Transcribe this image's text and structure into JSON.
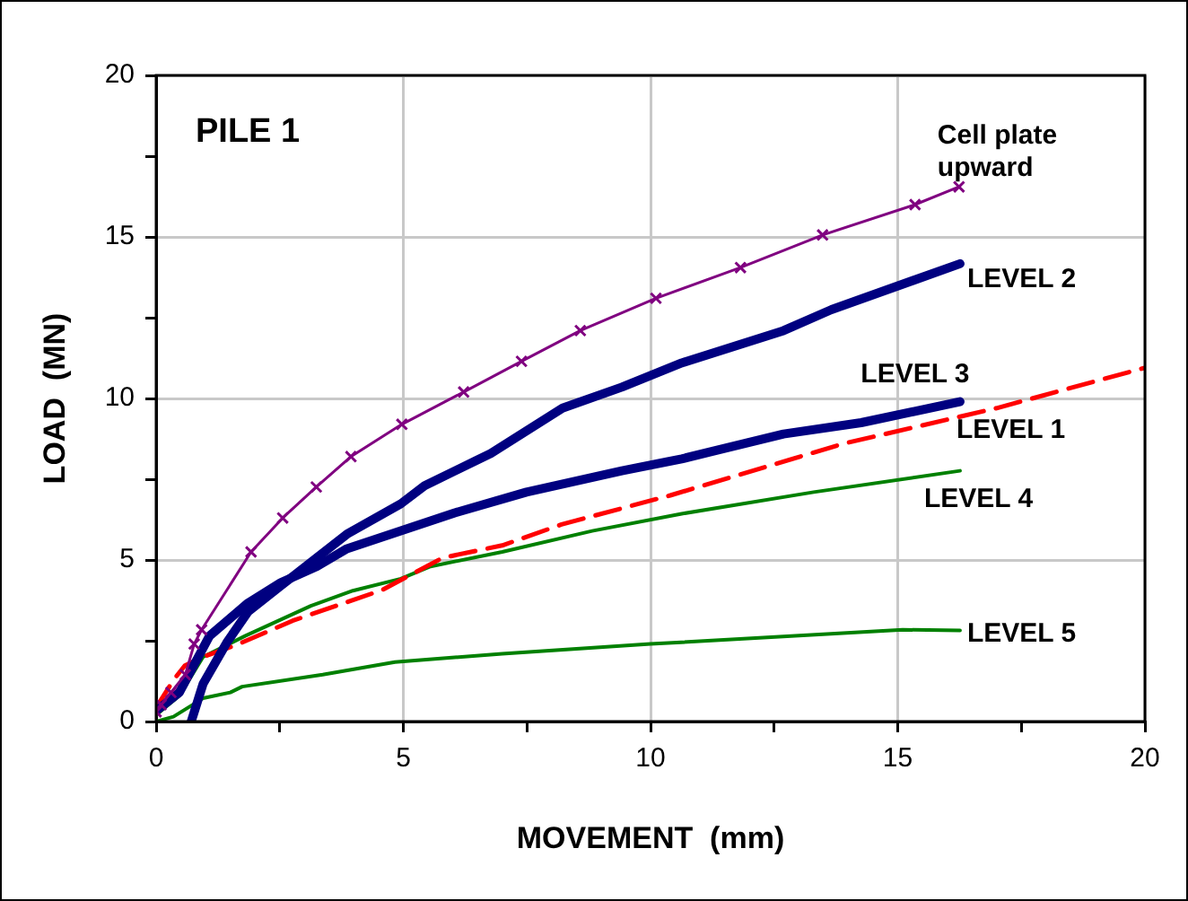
{
  "chart_data": {
    "type": "line",
    "xlabel": "MOVEMENT  (mm)",
    "ylabel": "LOAD  (MN)",
    "annotations": [
      "PILE 1"
    ],
    "xlim": [
      0,
      20
    ],
    "ylim": [
      0,
      20
    ],
    "xticks": [
      0,
      {
        "value": 2.5,
        "label": null
      },
      5,
      {
        "value": 7.5,
        "label": null
      },
      10,
      {
        "value": 12.5,
        "label": null
      },
      15,
      {
        "value": 17.5,
        "label": null
      },
      20
    ],
    "yticks": [
      0,
      {
        "value": 2.5,
        "label": null
      },
      5,
      {
        "value": 7.5,
        "label": null
      },
      10,
      {
        "value": 12.5,
        "label": null
      },
      15,
      {
        "value": 17.5,
        "label": null
      },
      20
    ],
    "grid": true,
    "legend": false,
    "marker": "none",
    "line_style": "solid",
    "series": [
      {
        "name": "Cell plate upward",
        "color": "#800080",
        "marker": "cross",
        "x": [
          0,
          0.1,
          0.3,
          0.59,
          0.77,
          0.92,
          1.92,
          2.56,
          3.24,
          3.94,
          4.97,
          6.22,
          7.39,
          8.58,
          10.11,
          11.82,
          13.48,
          15.35,
          16.24
        ],
        "values": [
          0.3,
          0.52,
          0.9,
          1.45,
          2.4,
          2.84,
          5.25,
          6.3,
          7.26,
          8.2,
          9.2,
          10.2,
          11.15,
          12.1,
          13.1,
          14.05,
          15.06,
          16.0,
          16.55
        ]
      },
      {
        "name": "LEVEL 2",
        "color": "#000080",
        "x": [
          0.71,
          0.95,
          1.44,
          1.86,
          2.52,
          3.25,
          3.86,
          4.95,
          5.43,
          6.77,
          8.22,
          9.42,
          10.63,
          12.69,
          13.66,
          16.26
        ],
        "values": [
          0,
          1.17,
          2.47,
          3.4,
          4.2,
          5.07,
          5.8,
          6.74,
          7.3,
          8.3,
          9.7,
          10.35,
          11.1,
          12.1,
          12.75,
          14.17
        ]
      },
      {
        "name": "LEVEL 3",
        "color": "#000080",
        "x": [
          0,
          0.47,
          1.08,
          1.86,
          2.52,
          3.25,
          3.86,
          4.95,
          6.04,
          7.49,
          9.42,
          10.63,
          12.69,
          14.26,
          16.26
        ],
        "values": [
          0.33,
          0.9,
          2.65,
          3.67,
          4.3,
          4.8,
          5.35,
          5.9,
          6.46,
          7.1,
          7.76,
          8.13,
          8.9,
          9.25,
          9.9
        ]
      },
      {
        "name": "LEVEL 1",
        "color": "#ff0000",
        "line_style": "dashed",
        "x": [
          0,
          0.35,
          0.58,
          0.95,
          1.67,
          2.76,
          4.57,
          5.8,
          7.0,
          8.2,
          10.4,
          13.9,
          17.0,
          20
        ],
        "values": [
          0.43,
          1.28,
          1.73,
          2.0,
          2.4,
          3.12,
          4.07,
          5.07,
          5.45,
          6.1,
          7.0,
          8.6,
          9.7,
          10.95
        ]
      },
      {
        "name": "LEVEL 4",
        "color": "#008000",
        "x": [
          0,
          0.47,
          0.95,
          1.8,
          3.13,
          3.98,
          4.95,
          5.55,
          7.0,
          8.82,
          10.63,
          13.3,
          16.26
        ],
        "values": [
          0.2,
          0.8,
          2.0,
          2.65,
          3.58,
          4.05,
          4.42,
          4.8,
          5.25,
          5.9,
          6.43,
          7.1,
          7.76
        ]
      },
      {
        "name": "LEVEL 5",
        "color": "#008000",
        "x": [
          0,
          0.35,
          0.95,
          1.5,
          1.74,
          3.37,
          4.83,
          7.0,
          10.0,
          15.1,
          16.26
        ],
        "values": [
          0,
          0.15,
          0.72,
          0.9,
          1.08,
          1.45,
          1.84,
          2.1,
          2.4,
          2.84,
          2.82
        ]
      }
    ]
  }
}
